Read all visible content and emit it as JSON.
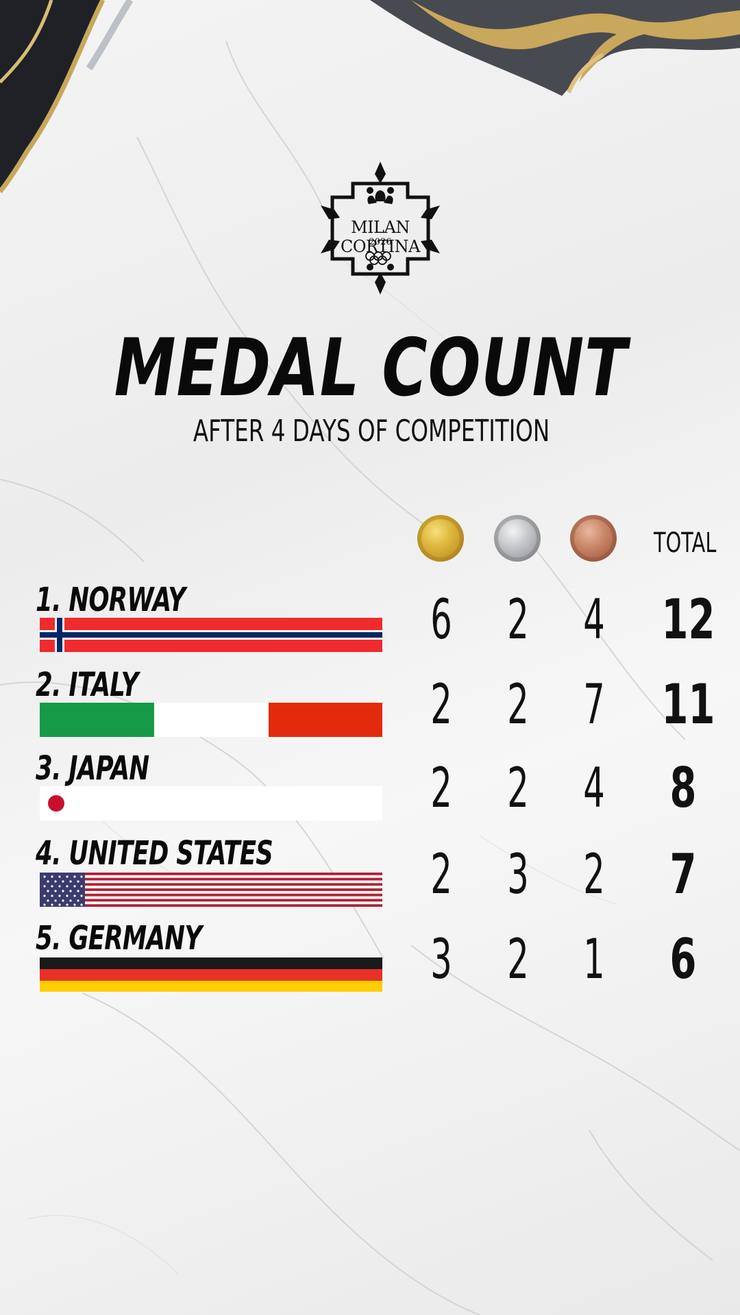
{
  "logo": {
    "text": "MILAN CORTINA",
    "year": "2026"
  },
  "title": "MEDAL COUNT",
  "subtitle": "AFTER 4 DAYS OF COMPETITION",
  "header": {
    "gold_icon": "gold-medal-icon",
    "silver_icon": "silver-medal-icon",
    "bronze_icon": "bronze-medal-icon",
    "total_label": "TOTAL"
  },
  "colors": {
    "gold": "#d9b33a",
    "silver": "#a9abae",
    "bronze": "#b8755a"
  },
  "rows": [
    {
      "rank_name": "1.  NORWAY",
      "flag": "norway-flag-icon",
      "gold": "6",
      "silver": "2",
      "bronze": "4",
      "total": "12"
    },
    {
      "rank_name": "2.  ITALY",
      "flag": "italy-flag-icon",
      "gold": "2",
      "silver": "2",
      "bronze": "7",
      "total": "11"
    },
    {
      "rank_name": "3.  JAPAN",
      "flag": "japan-flag-icon",
      "gold": "2",
      "silver": "2",
      "bronze": "4",
      "total": "8"
    },
    {
      "rank_name": "4. UNITED STATES",
      "flag": "usa-flag-icon",
      "gold": "2",
      "silver": "3",
      "bronze": "2",
      "total": "7"
    },
    {
      "rank_name": "5. GERMANY",
      "flag": "germany-flag-icon",
      "gold": "3",
      "silver": "2",
      "bronze": "1",
      "total": "6"
    }
  ]
}
